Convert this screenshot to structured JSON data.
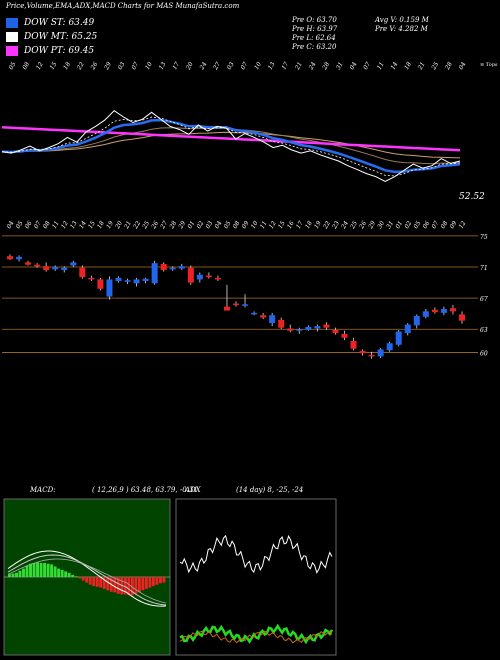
{
  "header": {
    "title": "Price,Volume,EMA,ADX,MACD Charts for MAS MunafaSutra.com",
    "legend": [
      {
        "label": "DOW ST: 63.49",
        "color": "#1e63e8"
      },
      {
        "label": "DOW MT: 65.25",
        "color": "#ffffff"
      },
      {
        "label": "DOW PT: 69.45",
        "color": "#ff33ff"
      }
    ],
    "ohlc": {
      "open": "Pre O: 63.70",
      "high": "Pre H: 63.97",
      "low": "Pre L: 62.64",
      "close": "Pre C: 63.20",
      "avg_volume": "Avg V: 0.159 M",
      "prev_volume": "Pre V: 4.282 M"
    }
  },
  "top_panel": {
    "top_date_labels": [
      "05",
      "08",
      "12",
      "15",
      "18",
      "22",
      "26",
      "29",
      "03",
      "07",
      "10",
      "13",
      "17",
      "20",
      "24",
      "27",
      "03",
      "07",
      "10",
      "13",
      "17",
      "21",
      "24",
      "28",
      "31",
      "04",
      "07",
      "11",
      "14",
      "18",
      "21",
      "25",
      "28",
      "04"
    ],
    "top_right_label": "≡ Tops",
    "last_price_label": "52.52",
    "colors": {
      "price": "#ffffff",
      "ema_short": "#2a6cf0",
      "ema_long": "#ff33ff",
      "ema_mid": "#9a7a55",
      "ema_mid2": "#c8a070"
    },
    "price_line": [
      72.8,
      72.6,
      73.0,
      73.5,
      72.9,
      73.3,
      73.8,
      74.6,
      74.0,
      75.3,
      76.0,
      76.8,
      78.0,
      77.2,
      76.5,
      76.9,
      77.8,
      76.9,
      76.0,
      75.6,
      75.0,
      76.2,
      75.4,
      76.0,
      75.8,
      74.4,
      75.1,
      74.6,
      74.0,
      73.3,
      73.6,
      73.0,
      72.6,
      72.9,
      72.4,
      72.0,
      71.6,
      71.0,
      70.5,
      70.0,
      69.6,
      69.0,
      69.6,
      70.4,
      71.2,
      70.7,
      71.0,
      71.9,
      71.3,
      71.6
    ]
  },
  "chart_data": {
    "type": "candlestick",
    "y_ticks": [
      75,
      71,
      67,
      63,
      60
    ],
    "ylim": [
      57.5,
      75.5
    ],
    "x_labels": [
      "04",
      "05",
      "06",
      "07",
      "08",
      "11",
      "12",
      "13",
      "14",
      "15",
      "18",
      "19",
      "20",
      "21",
      "22",
      "25",
      "26",
      "27",
      "28",
      "29",
      "01",
      "02",
      "03",
      "04",
      "05",
      "08",
      "09",
      "10",
      "11",
      "12",
      "15",
      "16",
      "17",
      "18",
      "19",
      "22",
      "23",
      "24",
      "25",
      "26",
      "29",
      "30",
      "31",
      "01",
      "02",
      "05",
      "06",
      "07",
      "08",
      "09",
      "12"
    ],
    "candles": [
      {
        "o": 72.4,
        "h": 72.6,
        "l": 71.9,
        "c": 72.0
      },
      {
        "o": 72.0,
        "h": 72.5,
        "l": 71.7,
        "c": 72.3
      },
      {
        "o": 71.6,
        "h": 71.8,
        "l": 71.2,
        "c": 71.3
      },
      {
        "o": 71.3,
        "h": 71.5,
        "l": 70.9,
        "c": 71.1
      },
      {
        "o": 71.1,
        "h": 71.6,
        "l": 70.4,
        "c": 70.6
      },
      {
        "o": 70.7,
        "h": 71.2,
        "l": 70.5,
        "c": 71.0
      },
      {
        "o": 70.6,
        "h": 71.1,
        "l": 70.3,
        "c": 70.9
      },
      {
        "o": 71.2,
        "h": 71.8,
        "l": 71.0,
        "c": 71.6
      },
      {
        "o": 70.9,
        "h": 71.2,
        "l": 69.5,
        "c": 69.7
      },
      {
        "o": 69.6,
        "h": 69.9,
        "l": 69.2,
        "c": 69.4
      },
      {
        "o": 69.4,
        "h": 69.6,
        "l": 68.0,
        "c": 68.2
      },
      {
        "o": 67.2,
        "h": 69.8,
        "l": 66.8,
        "c": 69.4
      },
      {
        "o": 69.2,
        "h": 69.8,
        "l": 69.0,
        "c": 69.6
      },
      {
        "o": 69.1,
        "h": 69.5,
        "l": 68.8,
        "c": 69.3
      },
      {
        "o": 68.9,
        "h": 69.6,
        "l": 68.5,
        "c": 69.4
      },
      {
        "o": 69.2,
        "h": 69.6,
        "l": 68.9,
        "c": 69.5
      },
      {
        "o": 68.9,
        "h": 71.8,
        "l": 68.7,
        "c": 71.5
      },
      {
        "o": 71.4,
        "h": 71.6,
        "l": 70.4,
        "c": 70.6
      },
      {
        "o": 70.7,
        "h": 71.1,
        "l": 70.5,
        "c": 70.9
      },
      {
        "o": 70.8,
        "h": 71.4,
        "l": 70.6,
        "c": 71.1
      },
      {
        "o": 70.9,
        "h": 71.2,
        "l": 68.7,
        "c": 69.0
      },
      {
        "o": 69.4,
        "h": 70.3,
        "l": 69.0,
        "c": 70.0
      },
      {
        "o": 69.9,
        "h": 70.3,
        "l": 69.5,
        "c": 69.7
      },
      {
        "o": 69.6,
        "h": 69.9,
        "l": 69.2,
        "c": 69.4
      },
      {
        "o": 65.9,
        "h": 68.7,
        "l": 65.4,
        "c": 65.4
      },
      {
        "o": 66.3,
        "h": 66.6,
        "l": 65.9,
        "c": 66.1
      },
      {
        "o": 66.2,
        "h": 67.5,
        "l": 65.8,
        "c": 66.2
      },
      {
        "o": 65.0,
        "h": 65.3,
        "l": 64.8,
        "c": 65.1
      },
      {
        "o": 64.8,
        "h": 65.1,
        "l": 64.3,
        "c": 64.5
      },
      {
        "o": 63.8,
        "h": 65.1,
        "l": 63.4,
        "c": 64.8
      },
      {
        "o": 64.2,
        "h": 64.5,
        "l": 63.0,
        "c": 63.2
      },
      {
        "o": 63.1,
        "h": 63.6,
        "l": 62.6,
        "c": 62.8
      },
      {
        "o": 62.9,
        "h": 63.2,
        "l": 62.4,
        "c": 63.0
      },
      {
        "o": 62.9,
        "h": 63.5,
        "l": 62.8,
        "c": 63.3
      },
      {
        "o": 63.1,
        "h": 63.6,
        "l": 62.7,
        "c": 63.4
      },
      {
        "o": 63.6,
        "h": 63.9,
        "l": 62.9,
        "c": 63.2
      },
      {
        "o": 62.9,
        "h": 63.2,
        "l": 62.3,
        "c": 62.5
      },
      {
        "o": 62.4,
        "h": 62.8,
        "l": 61.6,
        "c": 61.9
      },
      {
        "o": 61.5,
        "h": 61.9,
        "l": 60.3,
        "c": 60.5
      },
      {
        "o": 60.2,
        "h": 60.4,
        "l": 59.6,
        "c": 59.9
      },
      {
        "o": 59.7,
        "h": 60.1,
        "l": 59.2,
        "c": 59.5
      },
      {
        "o": 59.5,
        "h": 60.6,
        "l": 59.3,
        "c": 60.4
      },
      {
        "o": 60.3,
        "h": 61.4,
        "l": 60.1,
        "c": 61.2
      },
      {
        "o": 61.0,
        "h": 62.9,
        "l": 60.8,
        "c": 62.7
      },
      {
        "o": 62.5,
        "h": 63.8,
        "l": 62.2,
        "c": 63.6
      },
      {
        "o": 63.5,
        "h": 64.9,
        "l": 63.1,
        "c": 64.7
      },
      {
        "o": 64.6,
        "h": 65.6,
        "l": 64.4,
        "c": 65.3
      },
      {
        "o": 65.5,
        "h": 65.8,
        "l": 65.0,
        "c": 65.2
      },
      {
        "o": 65.1,
        "h": 65.9,
        "l": 64.8,
        "c": 65.6
      },
      {
        "o": 65.7,
        "h": 66.1,
        "l": 64.9,
        "c": 65.3
      },
      {
        "o": 64.9,
        "h": 65.3,
        "l": 63.7,
        "c": 64.1
      }
    ]
  },
  "macd": {
    "label": "MACD:",
    "values": "( 12,26,9 ) 63.48, 63.79, -0.31",
    "hist": [
      0.4,
      0.5,
      0.6,
      0.9,
      1.2,
      1.6,
      1.9,
      2.0,
      2.1,
      2.0,
      2.0,
      1.9,
      1.8,
      1.5,
      1.2,
      1.0,
      0.8,
      0.6,
      0.3,
      0.1,
      -0.2,
      -0.5,
      -0.8,
      -1.1,
      -1.3,
      -1.4,
      -1.5,
      -1.7,
      -1.9,
      -2.1,
      -2.2,
      -2.4,
      -2.5,
      -2.5,
      -2.6,
      -2.6,
      -2.4,
      -2.2,
      -1.9,
      -1.7,
      -1.5,
      -1.3,
      -1.1,
      -0.9,
      -0.8
    ]
  },
  "adx": {
    "label": "ADX",
    "values": "(14 day) 8, -25, -24",
    "colors": {
      "adx": "#ffffff",
      "plus_di": "#22dd22",
      "minus_di": "#cc6611"
    }
  }
}
